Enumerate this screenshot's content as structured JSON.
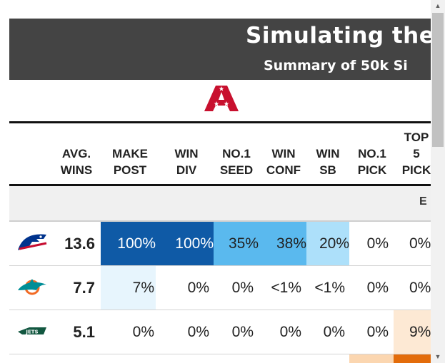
{
  "banner": {
    "title": "Simulating the",
    "subtitle": "Summary of 50k Si"
  },
  "conference_logo": "AFC",
  "columns": [
    {
      "key": "avg_wins",
      "line1": "AVG.",
      "line2": "WINS"
    },
    {
      "key": "make_post",
      "line1": "MAKE",
      "line2": "POST"
    },
    {
      "key": "win_div",
      "line1": "WIN",
      "line2": "DIV"
    },
    {
      "key": "no1_seed",
      "line1": "NO.1",
      "line2": "SEED"
    },
    {
      "key": "win_conf",
      "line1": "WIN",
      "line2": "CONF"
    },
    {
      "key": "win_sb",
      "line1": "WIN",
      "line2": "SB"
    },
    {
      "key": "no1_pick",
      "line1": "NO.1",
      "line2": "PICK"
    },
    {
      "key": "top5_pick",
      "line0": "TOP",
      "line1": "5",
      "line2": "PICK"
    }
  ],
  "division_label": "E",
  "teams": [
    {
      "logo": "bills-logo",
      "avg_wins": "13.6",
      "make_post": "100%",
      "win_div": "100%",
      "no1_seed": "35%",
      "win_conf": "38%",
      "win_sb": "20%",
      "no1_pick": "0%",
      "top5_pick": "0%"
    },
    {
      "logo": "dolphins-logo",
      "avg_wins": "7.7",
      "make_post": "7%",
      "win_div": "0%",
      "no1_seed": "0%",
      "win_conf": "<1%",
      "win_sb": "<1%",
      "no1_pick": "0%",
      "top5_pick": "0%"
    },
    {
      "logo": "jets-logo",
      "avg_wins": "5.1",
      "make_post": "0%",
      "win_div": "0%",
      "no1_seed": "0%",
      "win_conf": "0%",
      "win_sb": "0%",
      "no1_pick": "0%",
      "top5_pick": "9%"
    }
  ],
  "cell_colors": {
    "dark_blue": "#0f5aa6",
    "mid_blue": "#5ab9ee",
    "light_blue": "#ade0fa",
    "pale_blue": "#e7f5fd",
    "pale_orange": "#fde9d4",
    "light_orange": "#fbd6b0",
    "dark_orange": "#e36c0a"
  }
}
